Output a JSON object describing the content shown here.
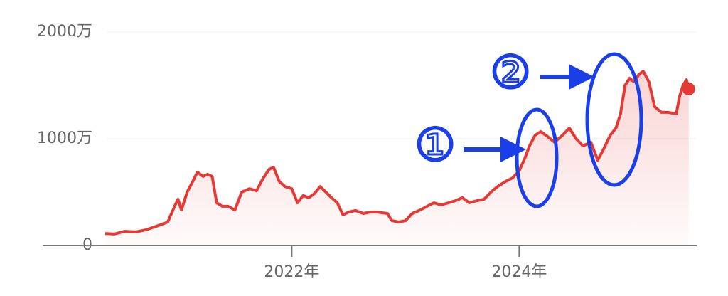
{
  "chart_data": {
    "type": "line",
    "x": [
      2020.36,
      2020.44,
      2020.53,
      2020.63,
      2020.72,
      2020.81,
      2020.91,
      2020.97,
      2021.0,
      2021.03,
      2021.08,
      2021.13,
      2021.17,
      2021.22,
      2021.26,
      2021.3,
      2021.34,
      2021.39,
      2021.44,
      2021.5,
      2021.56,
      2021.63,
      2021.69,
      2021.75,
      2021.8,
      2021.84,
      2021.89,
      2021.94,
      2022.0,
      2022.05,
      2022.1,
      2022.15,
      2022.2,
      2022.25,
      2022.3,
      2022.35,
      2022.4,
      2022.45,
      2022.5,
      2022.56,
      2022.63,
      2022.69,
      2022.75,
      2022.84,
      2022.88,
      2022.94,
      2023.0,
      2023.06,
      2023.13,
      2023.19,
      2023.25,
      2023.31,
      2023.38,
      2023.44,
      2023.5,
      2023.56,
      2023.63,
      2023.69,
      2023.75,
      2023.81,
      2023.88,
      2023.94,
      2024.0,
      2024.05,
      2024.09,
      2024.14,
      2024.19,
      2024.25,
      2024.31,
      2024.38,
      2024.44,
      2024.5,
      2024.56,
      2024.63,
      2024.69,
      2024.74,
      2024.8,
      2024.85,
      2024.89,
      2024.93,
      2024.97,
      2025.01,
      2025.05,
      2025.09,
      2025.14,
      2025.19,
      2025.25,
      2025.31,
      2025.38,
      2025.41,
      2025.44,
      2025.47,
      2025.49
    ],
    "series": [
      {
        "color": "#e53935",
        "values": [
          1130000,
          1070000,
          1330000,
          1270000,
          1470000,
          1800000,
          2200000,
          3670000,
          4330000,
          3330000,
          5000000,
          6000000,
          6870000,
          6470000,
          6670000,
          6470000,
          4000000,
          3670000,
          3670000,
          3330000,
          5000000,
          5330000,
          5130000,
          6330000,
          7130000,
          7330000,
          6000000,
          5530000,
          5330000,
          4000000,
          4670000,
          4470000,
          4870000,
          5530000,
          5000000,
          4470000,
          4000000,
          2870000,
          3130000,
          3270000,
          3000000,
          3130000,
          3130000,
          3000000,
          2330000,
          2200000,
          2330000,
          3000000,
          3330000,
          3670000,
          4000000,
          3800000,
          4000000,
          4200000,
          4470000,
          4000000,
          4200000,
          4330000,
          5000000,
          5530000,
          6000000,
          6330000,
          7000000,
          8200000,
          9330000,
          10330000,
          10670000,
          10200000,
          9670000,
          10330000,
          11000000,
          10000000,
          9330000,
          9670000,
          8000000,
          9000000,
          10330000,
          11000000,
          12330000,
          15000000,
          15670000,
          15330000,
          16000000,
          16330000,
          15330000,
          13000000,
          12470000,
          12470000,
          12330000,
          14000000,
          15000000,
          15530000,
          14670000
        ]
      }
    ],
    "xlim": [
      2019.81,
      2025.56
    ],
    "xticks": [
      {
        "value": 2022,
        "label": "2022年"
      },
      {
        "value": 2024,
        "label": "2024年"
      }
    ],
    "ylim": [
      0,
      20000000
    ],
    "yticks": [
      0,
      {
        "value": 10000000,
        "label": "1000万"
      },
      {
        "value": 20000000,
        "label": "2000万"
      }
    ],
    "grid": true,
    "annotations": [
      "①",
      "②"
    ]
  }
}
